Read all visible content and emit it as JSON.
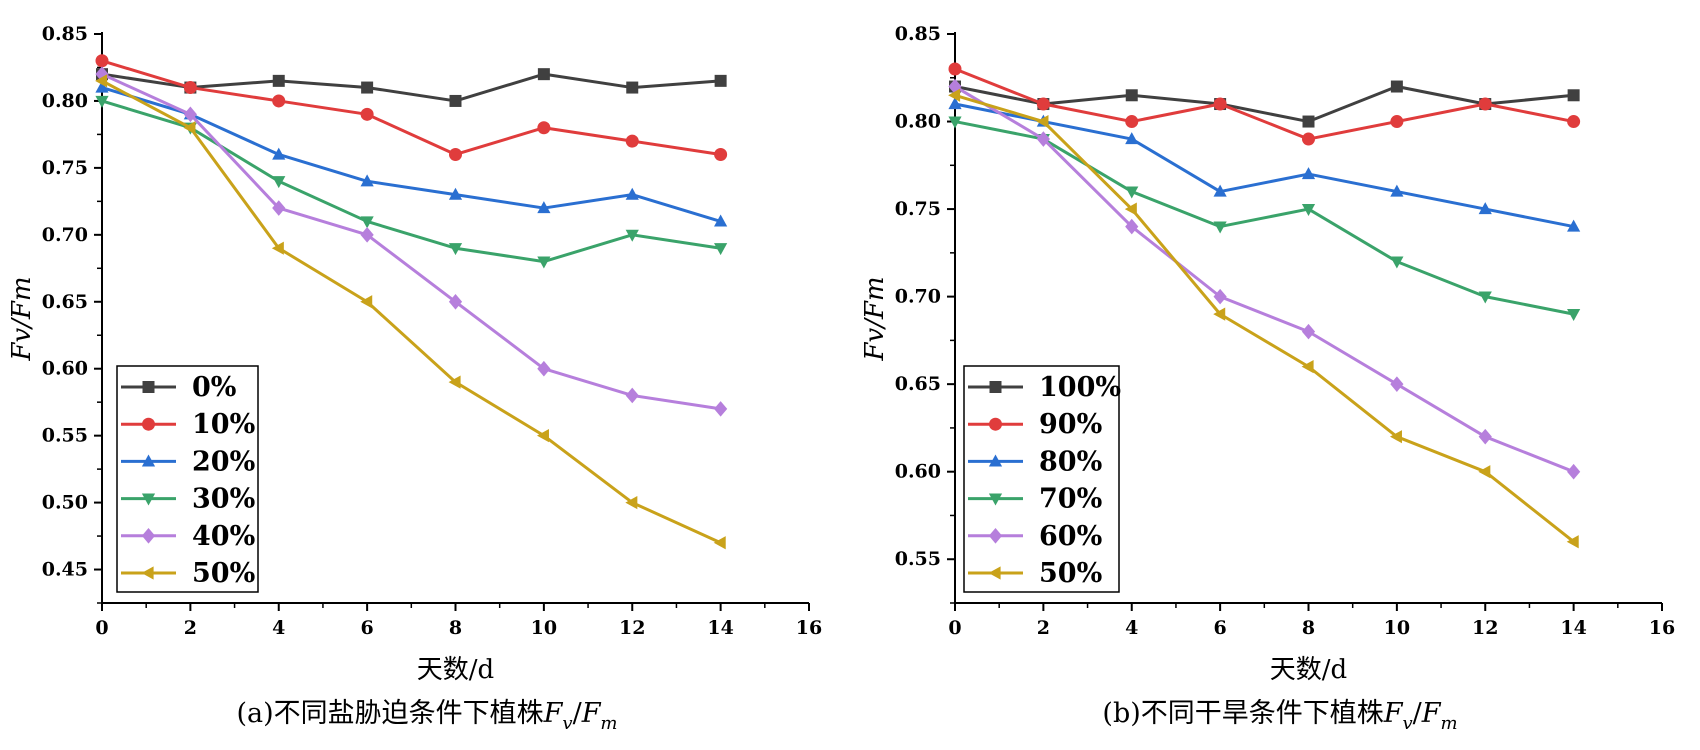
{
  "chart_data": [
    {
      "type": "line",
      "caption": "(a)不同盐胁迫条件下植株",
      "caption_var_main": "F",
      "caption_var_sub1": "v",
      "caption_slash": "/",
      "caption_var_main2": "F",
      "caption_var_sub2": "m",
      "xlabel": "天数/d",
      "ylabel": "Fv/Fm",
      "xlim": [
        0,
        16
      ],
      "ylim": [
        0.425,
        0.85
      ],
      "xticks": [
        0,
        2,
        4,
        6,
        8,
        10,
        12,
        14,
        16
      ],
      "yticks": [
        0.45,
        0.5,
        0.55,
        0.6,
        0.65,
        0.7,
        0.75,
        0.8,
        0.85
      ],
      "x": [
        0,
        2,
        4,
        6,
        8,
        10,
        12,
        14
      ],
      "legend_position": "bottom-left",
      "series": [
        {
          "name": "0%",
          "color": "#404040",
          "marker": "square",
          "values": [
            0.82,
            0.81,
            0.815,
            0.81,
            0.8,
            0.82,
            0.81,
            0.815
          ]
        },
        {
          "name": "10%",
          "color": "#e03c3c",
          "marker": "circle",
          "values": [
            0.83,
            0.81,
            0.8,
            0.79,
            0.76,
            0.78,
            0.77,
            0.76
          ]
        },
        {
          "name": "20%",
          "color": "#2a6fd1",
          "marker": "triangle-up",
          "values": [
            0.81,
            0.79,
            0.76,
            0.74,
            0.73,
            0.72,
            0.73,
            0.71
          ]
        },
        {
          "name": "30%",
          "color": "#3aa36a",
          "marker": "triangle-down",
          "values": [
            0.8,
            0.78,
            0.74,
            0.71,
            0.69,
            0.68,
            0.7,
            0.69
          ]
        },
        {
          "name": "40%",
          "color": "#b67fdc",
          "marker": "diamond",
          "values": [
            0.82,
            0.79,
            0.72,
            0.7,
            0.65,
            0.6,
            0.58,
            0.57
          ]
        },
        {
          "name": "50%",
          "color": "#c9a21a",
          "marker": "triangle-left",
          "values": [
            0.815,
            0.78,
            0.69,
            0.65,
            0.59,
            0.55,
            0.5,
            0.47
          ]
        }
      ]
    },
    {
      "type": "line",
      "caption": "(b)不同干旱条件下植株",
      "caption_var_main": "F",
      "caption_var_sub1": "v",
      "caption_slash": "/",
      "caption_var_main2": "F",
      "caption_var_sub2": "m",
      "xlabel": "天数/d",
      "ylabel": "Fv/Fm",
      "xlim": [
        0,
        16
      ],
      "ylim": [
        0.525,
        0.85
      ],
      "xticks": [
        0,
        2,
        4,
        6,
        8,
        10,
        12,
        14,
        16
      ],
      "yticks": [
        0.55,
        0.6,
        0.65,
        0.7,
        0.75,
        0.8,
        0.85
      ],
      "x": [
        0,
        2,
        4,
        6,
        8,
        10,
        12,
        14
      ],
      "legend_position": "bottom-left",
      "series": [
        {
          "name": "100%",
          "color": "#404040",
          "marker": "square",
          "values": [
            0.82,
            0.81,
            0.815,
            0.81,
            0.8,
            0.82,
            0.81,
            0.815
          ]
        },
        {
          "name": "90%",
          "color": "#e03c3c",
          "marker": "circle",
          "values": [
            0.83,
            0.81,
            0.8,
            0.81,
            0.79,
            0.8,
            0.81,
            0.8
          ]
        },
        {
          "name": "80%",
          "color": "#2a6fd1",
          "marker": "triangle-up",
          "values": [
            0.81,
            0.8,
            0.79,
            0.76,
            0.77,
            0.76,
            0.75,
            0.74
          ]
        },
        {
          "name": "70%",
          "color": "#3aa36a",
          "marker": "triangle-down",
          "values": [
            0.8,
            0.79,
            0.76,
            0.74,
            0.75,
            0.72,
            0.7,
            0.69
          ]
        },
        {
          "name": "60%",
          "color": "#b67fdc",
          "marker": "diamond",
          "values": [
            0.82,
            0.79,
            0.74,
            0.7,
            0.68,
            0.65,
            0.62,
            0.6
          ]
        },
        {
          "name": "50%",
          "color": "#c9a21a",
          "marker": "triangle-left",
          "values": [
            0.815,
            0.8,
            0.75,
            0.69,
            0.66,
            0.62,
            0.6,
            0.56
          ]
        }
      ]
    }
  ]
}
